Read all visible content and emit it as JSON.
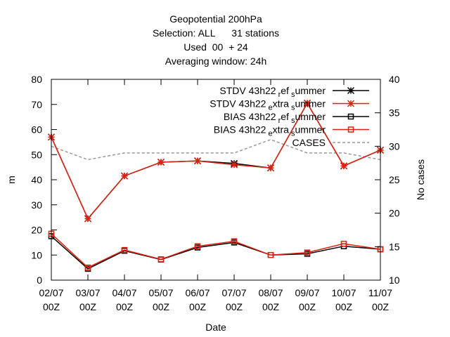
{
  "chart_data": {
    "type": "line",
    "title_lines": [
      "Geopotential 200hPa",
      "Selection: ALL      31 stations",
      "Used  00  + 24",
      "Averaging window: 24h"
    ],
    "xlabel": "Date",
    "ylabel": "m",
    "y2label": "No cases",
    "categories": [
      [
        "02/07",
        "00Z"
      ],
      [
        "03/07",
        "00Z"
      ],
      [
        "04/07",
        "00Z"
      ],
      [
        "05/07",
        "00Z"
      ],
      [
        "06/07",
        "00Z"
      ],
      [
        "07/07",
        "00Z"
      ],
      [
        "08/07",
        "00Z"
      ],
      [
        "09/07",
        "00Z"
      ],
      [
        "10/07",
        "00Z"
      ],
      [
        "11/07",
        "00Z"
      ]
    ],
    "ylim": [
      0,
      80
    ],
    "yticks": [
      0,
      10,
      20,
      30,
      40,
      50,
      60,
      70,
      80
    ],
    "y2lim": [
      10,
      40
    ],
    "y2ticks": [
      10,
      15,
      20,
      25,
      30,
      35,
      40
    ],
    "legend_position": "top-right",
    "series": [
      {
        "name": "STDV 43h22_ref_summer",
        "legend": {
          "base": "STDV 43h22",
          "sub1": "r",
          "mid": "ef",
          "sub2": "s",
          "tail": "ummer"
        },
        "color": "#000000",
        "marker": "star",
        "axis": "y",
        "values": [
          57.0,
          24.5,
          41.5,
          47.0,
          47.5,
          46.5,
          44.7,
          70.5,
          45.5,
          51.8
        ]
      },
      {
        "name": "STDV 43h22_extra_summer",
        "legend": {
          "base": "STDV 43h22",
          "sub1": "e",
          "mid": "xtra",
          "sub2": "s",
          "tail": "ummer"
        },
        "color": "#dd2211",
        "marker": "star",
        "axis": "y",
        "values": [
          57.0,
          24.5,
          41.5,
          47.0,
          47.5,
          46.0,
          44.7,
          70.5,
          45.5,
          51.8
        ]
      },
      {
        "name": "BIAS 43h22_ref_summer",
        "legend": {
          "base": "BIAS 43h22",
          "sub1": "r",
          "mid": "ef",
          "sub2": "s",
          "tail": "ummer"
        },
        "color": "#000000",
        "marker": "square",
        "axis": "y",
        "values": [
          17.5,
          4.5,
          11.7,
          8.2,
          13.0,
          15.0,
          10.0,
          10.5,
          13.5,
          12.3
        ]
      },
      {
        "name": "BIAS 43h22_extra_summer",
        "legend": {
          "base": "BIAS 43h22",
          "sub1": "e",
          "mid": "xtra",
          "sub2": "s",
          "tail": "ummer"
        },
        "color": "#dd2211",
        "marker": "square",
        "axis": "y",
        "values": [
          18.5,
          5.0,
          12.0,
          8.3,
          13.5,
          15.5,
          10.0,
          11.0,
          14.5,
          12.3
        ]
      },
      {
        "name": "CASES",
        "legend": {
          "base": "CASES",
          "sub1": "",
          "mid": "",
          "sub2": "",
          "tail": ""
        },
        "color": "#999999",
        "marker": "none",
        "dashed": true,
        "axis": "y2",
        "values": [
          30,
          28,
          29,
          29,
          29,
          29,
          31,
          29,
          29,
          28
        ]
      }
    ]
  }
}
